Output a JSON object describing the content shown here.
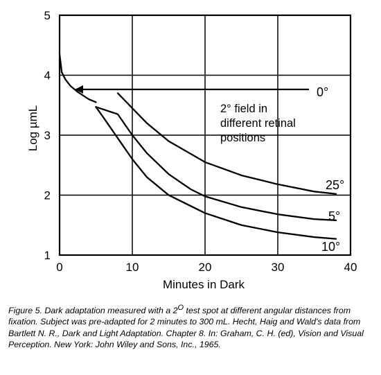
{
  "chart_data": {
    "type": "line",
    "xlabel": "Minutes in Dark",
    "ylabel": "Log µmL",
    "xlim": [
      0,
      40
    ],
    "ylim": [
      1,
      5
    ],
    "x_ticks": [
      "0",
      "10",
      "20",
      "30",
      "40"
    ],
    "y_ticks": [
      "1",
      "2",
      "3",
      "4",
      "5"
    ],
    "grid": true,
    "series": [
      {
        "name": "0°",
        "x": [
          0,
          0.3,
          0.8,
          1.5,
          2.5,
          4,
          5
        ],
        "y": [
          4.35,
          4.05,
          3.93,
          3.82,
          3.72,
          3.6,
          3.55
        ]
      },
      {
        "name": "5°",
        "x": [
          5,
          8,
          10,
          12,
          15,
          18,
          20,
          25,
          30,
          35,
          38
        ],
        "y": [
          3.47,
          3.35,
          3.0,
          2.7,
          2.35,
          2.1,
          1.98,
          1.8,
          1.68,
          1.6,
          1.58
        ]
      },
      {
        "name": "10°",
        "x": [
          5,
          6,
          8,
          10,
          12,
          15,
          20,
          25,
          30,
          35,
          38
        ],
        "y": [
          3.47,
          3.3,
          2.95,
          2.6,
          2.3,
          2.0,
          1.7,
          1.5,
          1.38,
          1.3,
          1.27
        ]
      },
      {
        "name": "25°",
        "x": [
          8,
          10,
          12,
          15,
          20,
          25,
          30,
          35,
          38
        ],
        "y": [
          3.7,
          3.45,
          3.2,
          2.9,
          2.55,
          2.33,
          2.18,
          2.06,
          2.02
        ]
      }
    ],
    "annotations": {
      "field_note": [
        "2° field in",
        "different retinal",
        "positions"
      ]
    }
  },
  "caption": {
    "part1": "Figure 5. Dark adaptation measured with a 2",
    "sup": "O",
    "part2": " test spot at different angular distances from fixation. Subject was pre-adapted for 2 minutes to 300 mL. Hecht, Haig and Wald's data from Bartlett N. R., Dark and Light Adaptation. Chapter 8. In: Graham, C. H. (ed), Vision and Visual Perception. New York: John Wiley and Sons, Inc., 1965."
  }
}
